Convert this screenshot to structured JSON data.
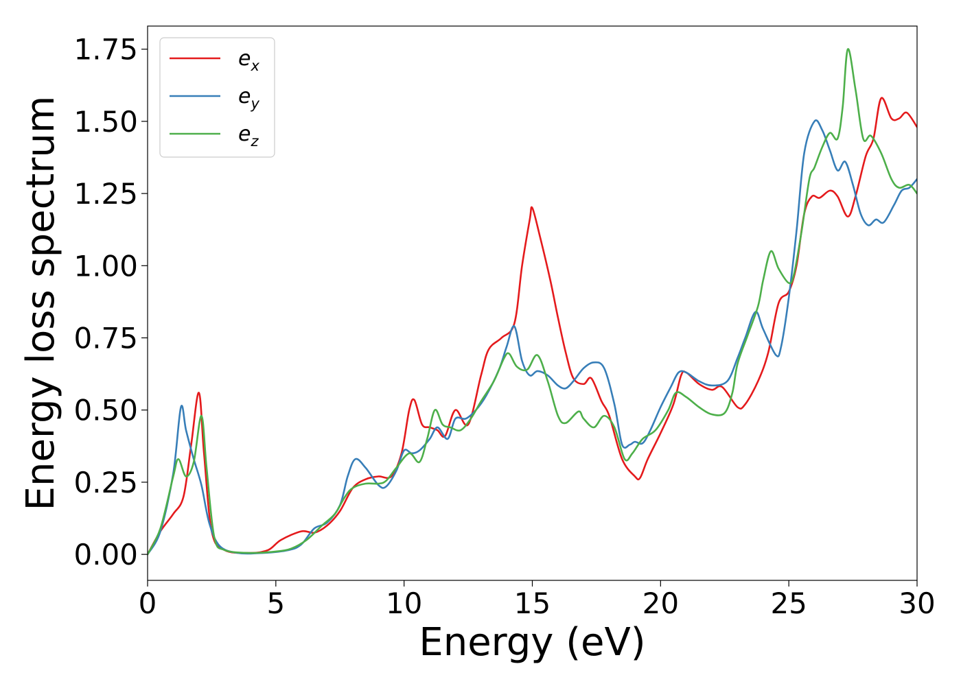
{
  "chart_data": {
    "type": "line",
    "title": "",
    "xlabel": "Energy (eV)",
    "ylabel": "Energy loss spectrum",
    "xlim": [
      0,
      30
    ],
    "ylim": [
      -0.09,
      1.83
    ],
    "xticks": [
      0,
      5,
      10,
      15,
      20,
      25,
      30
    ],
    "xtick_labels": [
      "0",
      "5",
      "10",
      "15",
      "20",
      "25",
      "30"
    ],
    "yticks": [
      0.0,
      0.25,
      0.5,
      0.75,
      1.0,
      1.25,
      1.5,
      1.75
    ],
    "ytick_labels": [
      "0.00",
      "0.25",
      "0.50",
      "0.75",
      "1.00",
      "1.25",
      "1.50",
      "1.75"
    ],
    "grid": false,
    "legend_position": "top-left",
    "series": [
      {
        "name": "e",
        "subscript": "x",
        "color": "#e41a1c",
        "points": [
          [
            0,
            0.0
          ],
          [
            0.5,
            0.08
          ],
          [
            1.0,
            0.14
          ],
          [
            1.4,
            0.2
          ],
          [
            1.7,
            0.38
          ],
          [
            2.0,
            0.56
          ],
          [
            2.2,
            0.35
          ],
          [
            2.5,
            0.08
          ],
          [
            3.0,
            0.015
          ],
          [
            4.0,
            0.005
          ],
          [
            4.7,
            0.015
          ],
          [
            5.2,
            0.05
          ],
          [
            6.0,
            0.08
          ],
          [
            6.5,
            0.075
          ],
          [
            7.0,
            0.1
          ],
          [
            7.5,
            0.15
          ],
          [
            8.0,
            0.23
          ],
          [
            8.5,
            0.26
          ],
          [
            9.0,
            0.27
          ],
          [
            9.5,
            0.27
          ],
          [
            9.9,
            0.35
          ],
          [
            10.2,
            0.5
          ],
          [
            10.4,
            0.535
          ],
          [
            10.7,
            0.45
          ],
          [
            11.0,
            0.44
          ],
          [
            11.3,
            0.43
          ],
          [
            11.6,
            0.41
          ],
          [
            12.0,
            0.5
          ],
          [
            12.5,
            0.45
          ],
          [
            13.0,
            0.62
          ],
          [
            13.3,
            0.71
          ],
          [
            13.8,
            0.75
          ],
          [
            14.3,
            0.8
          ],
          [
            14.6,
            1.0
          ],
          [
            14.9,
            1.16
          ],
          [
            15.0,
            1.2
          ],
          [
            15.3,
            1.1
          ],
          [
            15.7,
            0.95
          ],
          [
            16.0,
            0.82
          ],
          [
            16.3,
            0.7
          ],
          [
            16.6,
            0.61
          ],
          [
            17.0,
            0.59
          ],
          [
            17.3,
            0.61
          ],
          [
            17.7,
            0.53
          ],
          [
            18.0,
            0.48
          ],
          [
            18.5,
            0.33
          ],
          [
            19.0,
            0.27
          ],
          [
            19.2,
            0.265
          ],
          [
            19.5,
            0.33
          ],
          [
            20.0,
            0.42
          ],
          [
            20.5,
            0.52
          ],
          [
            20.8,
            0.62
          ],
          [
            21.0,
            0.63
          ],
          [
            21.5,
            0.59
          ],
          [
            22.0,
            0.57
          ],
          [
            22.4,
            0.58
          ],
          [
            23.0,
            0.51
          ],
          [
            23.3,
            0.52
          ],
          [
            23.8,
            0.6
          ],
          [
            24.2,
            0.7
          ],
          [
            24.6,
            0.87
          ],
          [
            25.0,
            0.91
          ],
          [
            25.3,
            1.0
          ],
          [
            25.6,
            1.18
          ],
          [
            25.9,
            1.24
          ],
          [
            26.2,
            1.235
          ],
          [
            26.6,
            1.26
          ],
          [
            26.9,
            1.24
          ],
          [
            27.3,
            1.17
          ],
          [
            27.6,
            1.24
          ],
          [
            28.0,
            1.38
          ],
          [
            28.3,
            1.44
          ],
          [
            28.6,
            1.58
          ],
          [
            29.0,
            1.51
          ],
          [
            29.3,
            1.51
          ],
          [
            29.6,
            1.53
          ],
          [
            30.0,
            1.48
          ]
        ]
      },
      {
        "name": "e",
        "subscript": "y",
        "color": "#377eb8",
        "points": [
          [
            0,
            0.0
          ],
          [
            0.5,
            0.08
          ],
          [
            1.0,
            0.28
          ],
          [
            1.3,
            0.51
          ],
          [
            1.5,
            0.43
          ],
          [
            1.8,
            0.33
          ],
          [
            2.1,
            0.24
          ],
          [
            2.4,
            0.11
          ],
          [
            2.8,
            0.03
          ],
          [
            3.5,
            0.005
          ],
          [
            4.5,
            0.005
          ],
          [
            5.5,
            0.015
          ],
          [
            6.0,
            0.035
          ],
          [
            6.5,
            0.09
          ],
          [
            7.0,
            0.11
          ],
          [
            7.5,
            0.17
          ],
          [
            7.8,
            0.27
          ],
          [
            8.1,
            0.33
          ],
          [
            8.5,
            0.3
          ],
          [
            9.0,
            0.24
          ],
          [
            9.3,
            0.235
          ],
          [
            9.7,
            0.29
          ],
          [
            10.0,
            0.36
          ],
          [
            10.3,
            0.35
          ],
          [
            10.6,
            0.36
          ],
          [
            11.0,
            0.4
          ],
          [
            11.3,
            0.44
          ],
          [
            11.7,
            0.4
          ],
          [
            12.0,
            0.47
          ],
          [
            12.4,
            0.47
          ],
          [
            12.8,
            0.5
          ],
          [
            13.2,
            0.55
          ],
          [
            13.7,
            0.64
          ],
          [
            14.0,
            0.72
          ],
          [
            14.3,
            0.79
          ],
          [
            14.6,
            0.67
          ],
          [
            14.9,
            0.62
          ],
          [
            15.2,
            0.635
          ],
          [
            15.6,
            0.62
          ],
          [
            16.0,
            0.585
          ],
          [
            16.3,
            0.575
          ],
          [
            16.6,
            0.6
          ],
          [
            17.0,
            0.645
          ],
          [
            17.4,
            0.665
          ],
          [
            17.8,
            0.645
          ],
          [
            18.2,
            0.52
          ],
          [
            18.5,
            0.38
          ],
          [
            18.8,
            0.38
          ],
          [
            19.0,
            0.39
          ],
          [
            19.3,
            0.385
          ],
          [
            19.6,
            0.43
          ],
          [
            20.0,
            0.51
          ],
          [
            20.4,
            0.58
          ],
          [
            20.7,
            0.63
          ],
          [
            21.0,
            0.63
          ],
          [
            21.5,
            0.6
          ],
          [
            22.0,
            0.585
          ],
          [
            22.6,
            0.6
          ],
          [
            23.0,
            0.68
          ],
          [
            23.3,
            0.75
          ],
          [
            23.7,
            0.84
          ],
          [
            24.0,
            0.78
          ],
          [
            24.5,
            0.69
          ],
          [
            24.7,
            0.72
          ],
          [
            25.0,
            0.89
          ],
          [
            25.3,
            1.12
          ],
          [
            25.6,
            1.39
          ],
          [
            26.0,
            1.5
          ],
          [
            26.3,
            1.47
          ],
          [
            26.6,
            1.4
          ],
          [
            26.9,
            1.33
          ],
          [
            27.2,
            1.36
          ],
          [
            27.5,
            1.28
          ],
          [
            27.8,
            1.18
          ],
          [
            28.1,
            1.14
          ],
          [
            28.4,
            1.16
          ],
          [
            28.7,
            1.15
          ],
          [
            29.1,
            1.21
          ],
          [
            29.4,
            1.26
          ],
          [
            29.7,
            1.27
          ],
          [
            30.0,
            1.3
          ]
        ]
      },
      {
        "name": "e",
        "subscript": "z",
        "color": "#4daf4a",
        "points": [
          [
            0,
            0.0
          ],
          [
            0.5,
            0.09
          ],
          [
            1.0,
            0.27
          ],
          [
            1.2,
            0.33
          ],
          [
            1.5,
            0.27
          ],
          [
            1.8,
            0.32
          ],
          [
            2.1,
            0.48
          ],
          [
            2.3,
            0.3
          ],
          [
            2.6,
            0.06
          ],
          [
            3.0,
            0.015
          ],
          [
            4.0,
            0.005
          ],
          [
            5.0,
            0.01
          ],
          [
            5.6,
            0.02
          ],
          [
            6.2,
            0.05
          ],
          [
            6.8,
            0.1
          ],
          [
            7.3,
            0.14
          ],
          [
            7.7,
            0.2
          ],
          [
            8.0,
            0.23
          ],
          [
            8.5,
            0.245
          ],
          [
            9.0,
            0.245
          ],
          [
            9.3,
            0.255
          ],
          [
            9.7,
            0.3
          ],
          [
            10.2,
            0.35
          ],
          [
            10.6,
            0.32
          ],
          [
            10.9,
            0.4
          ],
          [
            11.2,
            0.5
          ],
          [
            11.5,
            0.45
          ],
          [
            11.8,
            0.44
          ],
          [
            12.2,
            0.43
          ],
          [
            12.6,
            0.47
          ],
          [
            13.0,
            0.53
          ],
          [
            13.5,
            0.6
          ],
          [
            13.9,
            0.68
          ],
          [
            14.1,
            0.695
          ],
          [
            14.4,
            0.65
          ],
          [
            14.8,
            0.64
          ],
          [
            15.2,
            0.69
          ],
          [
            15.6,
            0.6
          ],
          [
            16.0,
            0.48
          ],
          [
            16.3,
            0.455
          ],
          [
            16.8,
            0.495
          ],
          [
            17.0,
            0.47
          ],
          [
            17.4,
            0.44
          ],
          [
            17.8,
            0.48
          ],
          [
            18.2,
            0.44
          ],
          [
            18.6,
            0.33
          ],
          [
            18.9,
            0.35
          ],
          [
            19.3,
            0.4
          ],
          [
            19.8,
            0.43
          ],
          [
            20.3,
            0.5
          ],
          [
            20.6,
            0.56
          ],
          [
            21.0,
            0.545
          ],
          [
            21.5,
            0.51
          ],
          [
            22.0,
            0.485
          ],
          [
            22.5,
            0.49
          ],
          [
            22.8,
            0.56
          ],
          [
            23.0,
            0.66
          ],
          [
            23.4,
            0.76
          ],
          [
            23.8,
            0.86
          ],
          [
            24.0,
            0.95
          ],
          [
            24.3,
            1.05
          ],
          [
            24.6,
            0.99
          ],
          [
            25.0,
            0.94
          ],
          [
            25.2,
            0.97
          ],
          [
            25.5,
            1.12
          ],
          [
            25.8,
            1.3
          ],
          [
            26.0,
            1.34
          ],
          [
            26.3,
            1.41
          ],
          [
            26.6,
            1.46
          ],
          [
            26.9,
            1.44
          ],
          [
            27.1,
            1.55
          ],
          [
            27.3,
            1.75
          ],
          [
            27.6,
            1.61
          ],
          [
            27.9,
            1.44
          ],
          [
            28.2,
            1.45
          ],
          [
            28.6,
            1.39
          ],
          [
            29.0,
            1.3
          ],
          [
            29.3,
            1.27
          ],
          [
            29.7,
            1.28
          ],
          [
            30.0,
            1.25
          ]
        ]
      }
    ]
  }
}
